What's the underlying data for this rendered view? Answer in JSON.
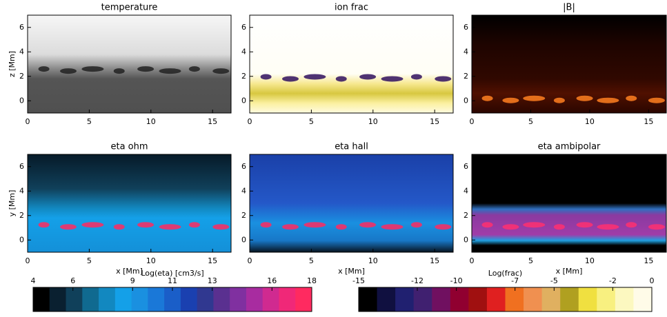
{
  "chart_data": [
    {
      "type": "image",
      "title": "temperature",
      "ylabel": "z [Mm]",
      "xlim": [
        0,
        16.5
      ],
      "ylim": [
        -1,
        7
      ],
      "xticks": [
        0,
        5,
        10,
        15
      ],
      "yticks": [
        0,
        2,
        4,
        6
      ]
    },
    {
      "type": "image",
      "title": "ion frac",
      "xlim": [
        0,
        16.5
      ],
      "ylim": [
        -1,
        7
      ],
      "xticks": [
        0,
        5,
        10,
        15
      ],
      "yticks": [
        0,
        2,
        4,
        6
      ]
    },
    {
      "type": "image",
      "title": "|B|",
      "xlim": [
        0,
        16.5
      ],
      "ylim": [
        -1,
        7
      ],
      "xticks": [
        0,
        5,
        10,
        15
      ],
      "yticks": [
        0,
        2,
        4,
        6
      ]
    },
    {
      "type": "image",
      "title": "eta ohm",
      "xlabel": "x [Mm]",
      "ylabel": "y [Mm]",
      "xlim": [
        0,
        16.5
      ],
      "ylim": [
        -1,
        7
      ],
      "xticks": [
        0,
        5,
        10,
        15
      ],
      "yticks": [
        0,
        2,
        4,
        6
      ]
    },
    {
      "type": "image",
      "title": "eta hall",
      "xlabel": "x [Mm]",
      "xlim": [
        0,
        16.5
      ],
      "ylim": [
        -1,
        7
      ],
      "xticks": [
        0,
        5,
        10,
        15
      ],
      "yticks": [
        0,
        2,
        4,
        6
      ]
    },
    {
      "type": "image",
      "title": "eta ambipolar",
      "xlabel": "x [Mm]",
      "xlim": [
        0,
        16.5
      ],
      "ylim": [
        -1,
        7
      ],
      "xticks": [
        0,
        5,
        10,
        15
      ],
      "yticks": [
        0,
        2,
        4,
        6
      ]
    },
    {
      "type": "colorbar",
      "label": "Log(eta) [cm3/s]",
      "xlim": [
        4,
        18
      ],
      "xticks": [
        4,
        6,
        9,
        11,
        13,
        16,
        18
      ],
      "colors": [
        "#000000",
        "#0a2030",
        "#10405a",
        "#106a90",
        "#1288c0",
        "#14a0e8",
        "#1a90e0",
        "#1a78d8",
        "#1a5ec8",
        "#1a40b0",
        "#303890",
        "#5a3090",
        "#8030a0",
        "#a82ca0",
        "#d02a90",
        "#f02878",
        "#ff2a60"
      ]
    },
    {
      "type": "colorbar",
      "label": "Log(frac)",
      "xlim": [
        -15,
        0
      ],
      "xticks": [
        -15,
        -12,
        -10,
        -7,
        -5,
        -2,
        0
      ],
      "colors": [
        "#000000",
        "#101040",
        "#202070",
        "#402070",
        "#701060",
        "#900030",
        "#a01010",
        "#e02020",
        "#f07020",
        "#f09050",
        "#e0b060",
        "#b0a020",
        "#f0e040",
        "#f8f080",
        "#fcf8c0",
        "#fffbe8"
      ]
    }
  ]
}
